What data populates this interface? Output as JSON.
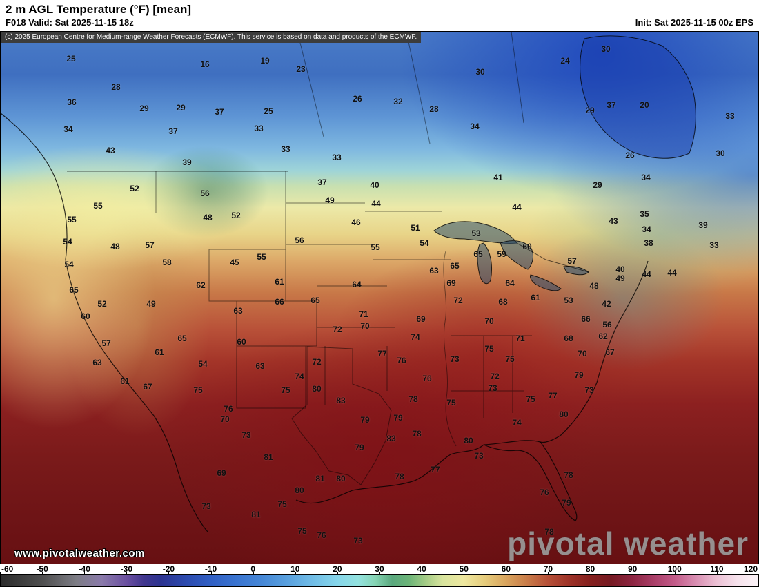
{
  "header": {
    "title": "2 m AGL Temperature (°F) [mean]",
    "valid_label": "F018 Valid: Sat 2025-11-15 18z",
    "init_label": "Init: Sat 2025-11-15 00z EPS"
  },
  "map": {
    "copyright": "(c) 2025 European Centre for Medium-range Weather Forecasts (ECMWF). This service is based on data and products of the ECMWF.",
    "watermark": "www.pivotalweather.com",
    "logo": "pivotal weather",
    "temp_labels": [
      [
        25,
        103,
        85
      ],
      [
        16,
        297,
        93
      ],
      [
        19,
        384,
        88
      ],
      [
        23,
        436,
        100
      ],
      [
        30,
        696,
        104
      ],
      [
        24,
        819,
        88
      ],
      [
        30,
        878,
        71
      ],
      [
        28,
        168,
        126
      ],
      [
        36,
        104,
        148
      ],
      [
        20,
        934,
        152
      ],
      [
        29,
        209,
        157
      ],
      [
        29,
        262,
        156
      ],
      [
        37,
        318,
        162
      ],
      [
        25,
        389,
        161
      ],
      [
        26,
        518,
        143
      ],
      [
        32,
        577,
        147
      ],
      [
        28,
        629,
        158
      ],
      [
        34,
        688,
        183
      ],
      [
        29,
        855,
        160
      ],
      [
        37,
        886,
        152
      ],
      [
        33,
        1058,
        168
      ],
      [
        34,
        99,
        187
      ],
      [
        37,
        251,
        190
      ],
      [
        33,
        375,
        186
      ],
      [
        43,
        160,
        218
      ],
      [
        33,
        414,
        216
      ],
      [
        26,
        913,
        225
      ],
      [
        30,
        1044,
        222
      ],
      [
        39,
        271,
        235
      ],
      [
        33,
        488,
        228
      ],
      [
        37,
        467,
        264
      ],
      [
        40,
        543,
        268
      ],
      [
        41,
        722,
        257
      ],
      [
        29,
        866,
        268
      ],
      [
        34,
        936,
        257
      ],
      [
        52,
        195,
        273
      ],
      [
        56,
        297,
        280
      ],
      [
        55,
        142,
        298
      ],
      [
        49,
        478,
        290
      ],
      [
        44,
        545,
        295
      ],
      [
        44,
        749,
        300
      ],
      [
        35,
        934,
        310
      ],
      [
        55,
        104,
        318
      ],
      [
        48,
        301,
        315
      ],
      [
        52,
        342,
        312
      ],
      [
        46,
        516,
        322
      ],
      [
        51,
        602,
        330
      ],
      [
        53,
        690,
        338
      ],
      [
        43,
        889,
        320
      ],
      [
        34,
        937,
        332
      ],
      [
        39,
        1019,
        326
      ],
      [
        54,
        98,
        350
      ],
      [
        48,
        167,
        357
      ],
      [
        57,
        217,
        355
      ],
      [
        56,
        434,
        348
      ],
      [
        55,
        544,
        358
      ],
      [
        54,
        615,
        352
      ],
      [
        65,
        693,
        368
      ],
      [
        59,
        727,
        368
      ],
      [
        60,
        764,
        357
      ],
      [
        38,
        940,
        352
      ],
      [
        33,
        1035,
        355
      ],
      [
        54,
        100,
        383
      ],
      [
        58,
        242,
        380
      ],
      [
        45,
        340,
        380
      ],
      [
        55,
        379,
        372
      ],
      [
        63,
        629,
        392
      ],
      [
        65,
        659,
        385
      ],
      [
        57,
        829,
        378
      ],
      [
        40,
        899,
        390
      ],
      [
        44,
        937,
        397
      ],
      [
        44,
        974,
        395
      ],
      [
        65,
        107,
        420
      ],
      [
        62,
        291,
        413
      ],
      [
        61,
        405,
        408
      ],
      [
        64,
        517,
        412
      ],
      [
        69,
        654,
        410
      ],
      [
        64,
        739,
        410
      ],
      [
        61,
        776,
        431
      ],
      [
        53,
        824,
        435
      ],
      [
        48,
        861,
        414
      ],
      [
        49,
        899,
        403
      ],
      [
        52,
        148,
        440
      ],
      [
        49,
        219,
        440
      ],
      [
        63,
        345,
        450
      ],
      [
        66,
        405,
        437
      ],
      [
        65,
        457,
        435
      ],
      [
        71,
        527,
        455
      ],
      [
        72,
        664,
        435
      ],
      [
        68,
        729,
        437
      ],
      [
        42,
        879,
        440
      ],
      [
        60,
        124,
        458
      ],
      [
        72,
        489,
        477
      ],
      [
        70,
        529,
        472
      ],
      [
        69,
        610,
        462
      ],
      [
        70,
        709,
        465
      ],
      [
        66,
        849,
        462
      ],
      [
        56,
        880,
        470
      ],
      [
        57,
        154,
        497
      ],
      [
        65,
        264,
        490
      ],
      [
        60,
        350,
        495
      ],
      [
        74,
        602,
        488
      ],
      [
        75,
        709,
        505
      ],
      [
        71,
        754,
        490
      ],
      [
        68,
        824,
        490
      ],
      [
        62,
        874,
        487
      ],
      [
        63,
        141,
        525
      ],
      [
        61,
        231,
        510
      ],
      [
        54,
        294,
        527
      ],
      [
        63,
        377,
        530
      ],
      [
        72,
        459,
        524
      ],
      [
        77,
        554,
        512
      ],
      [
        76,
        582,
        522
      ],
      [
        73,
        659,
        520
      ],
      [
        75,
        739,
        520
      ],
      [
        70,
        844,
        512
      ],
      [
        67,
        884,
        510
      ],
      [
        61,
        181,
        552
      ],
      [
        67,
        214,
        560
      ],
      [
        74,
        434,
        545
      ],
      [
        76,
        619,
        548
      ],
      [
        72,
        717,
        545
      ],
      [
        79,
        839,
        543
      ],
      [
        75,
        287,
        565
      ],
      [
        75,
        414,
        565
      ],
      [
        80,
        459,
        563
      ],
      [
        83,
        494,
        580
      ],
      [
        78,
        599,
        578
      ],
      [
        75,
        654,
        583
      ],
      [
        73,
        714,
        562
      ],
      [
        75,
        769,
        578
      ],
      [
        77,
        801,
        573
      ],
      [
        73,
        854,
        565
      ],
      [
        76,
        331,
        592
      ],
      [
        70,
        326,
        607
      ],
      [
        79,
        529,
        608
      ],
      [
        79,
        577,
        605
      ],
      [
        74,
        749,
        612
      ],
      [
        80,
        817,
        600
      ],
      [
        73,
        357,
        630
      ],
      [
        83,
        567,
        635
      ],
      [
        78,
        604,
        628
      ],
      [
        80,
        679,
        638
      ],
      [
        73,
        694,
        660
      ],
      [
        81,
        389,
        662
      ],
      [
        79,
        521,
        648
      ],
      [
        77,
        631,
        680
      ],
      [
        69,
        321,
        685
      ],
      [
        78,
        579,
        690
      ],
      [
        81,
        464,
        693
      ],
      [
        80,
        494,
        693
      ],
      [
        78,
        824,
        688
      ],
      [
        80,
        434,
        710
      ],
      [
        76,
        789,
        713
      ],
      [
        73,
        299,
        733
      ],
      [
        75,
        409,
        730
      ],
      [
        79,
        821,
        728
      ],
      [
        81,
        371,
        745
      ],
      [
        75,
        438,
        769
      ],
      [
        76,
        466,
        775
      ],
      [
        73,
        519,
        783
      ],
      [
        78,
        796,
        770
      ]
    ]
  },
  "colorbar": {
    "unit": "°F",
    "ticks": [
      -60,
      -50,
      -40,
      -30,
      -20,
      -10,
      0,
      10,
      20,
      30,
      40,
      50,
      60,
      70,
      80,
      90,
      100,
      110,
      120
    ],
    "stops": [
      {
        "value": -60,
        "color": "#2b2b2b"
      },
      {
        "value": -50,
        "color": "#4f4f4f"
      },
      {
        "value": -42,
        "color": "#7d7d85"
      },
      {
        "value": -36,
        "color": "#8a7aaa"
      },
      {
        "value": -30,
        "color": "#6a4fa0"
      },
      {
        "value": -26,
        "color": "#41368e"
      },
      {
        "value": -22,
        "color": "#2c3390"
      },
      {
        "value": -16,
        "color": "#2c4aae"
      },
      {
        "value": -10,
        "color": "#3160c4"
      },
      {
        "value": -4,
        "color": "#3a74d0"
      },
      {
        "value": 2,
        "color": "#4687d6"
      },
      {
        "value": 8,
        "color": "#59a0de"
      },
      {
        "value": 14,
        "color": "#70bce6"
      },
      {
        "value": 20,
        "color": "#86d6ea"
      },
      {
        "value": 25,
        "color": "#93e2df"
      },
      {
        "value": 29,
        "color": "#85d4b4"
      },
      {
        "value": 33,
        "color": "#5aa87e"
      },
      {
        "value": 37,
        "color": "#6cb478"
      },
      {
        "value": 41,
        "color": "#a4cc86"
      },
      {
        "value": 45,
        "color": "#d8e49e"
      },
      {
        "value": 50,
        "color": "#eee8a0"
      },
      {
        "value": 55,
        "color": "#e6cc7c"
      },
      {
        "value": 60,
        "color": "#d9a55e"
      },
      {
        "value": 65,
        "color": "#c97c48"
      },
      {
        "value": 70,
        "color": "#b65038"
      },
      {
        "value": 75,
        "color": "#9e3328"
      },
      {
        "value": 80,
        "color": "#85201e"
      },
      {
        "value": 85,
        "color": "#761a22"
      },
      {
        "value": 90,
        "color": "#8c2440"
      },
      {
        "value": 95,
        "color": "#a83d66"
      },
      {
        "value": 100,
        "color": "#c25a88"
      },
      {
        "value": 105,
        "color": "#d88cb0"
      },
      {
        "value": 110,
        "color": "#ecc0d4"
      },
      {
        "value": 115,
        "color": "#f6e2ec"
      },
      {
        "value": 120,
        "color": "#fbf3f7"
      }
    ]
  }
}
